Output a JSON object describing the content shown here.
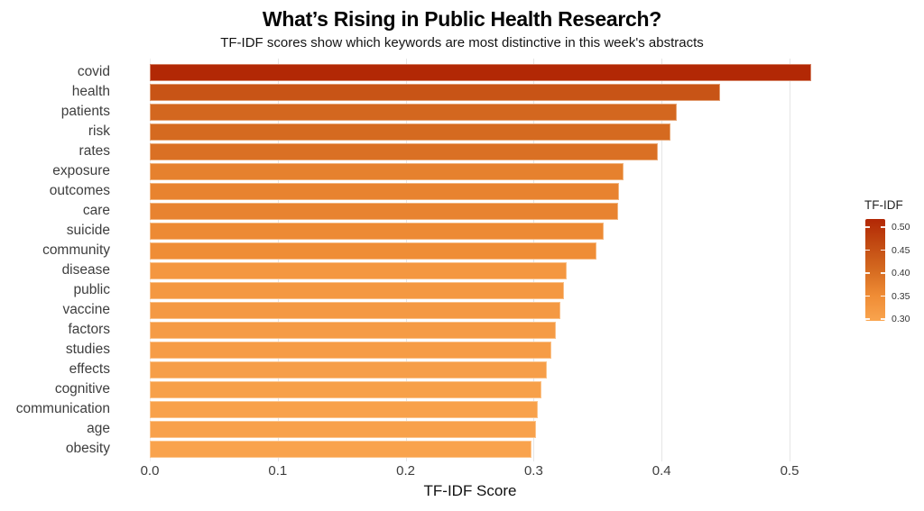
{
  "title": "What’s Rising in Public Health Research?",
  "subtitle": "TF-IDF scores show which keywords are most distinctive in this week's abstracts",
  "chart_data": {
    "type": "bar",
    "orientation": "horizontal",
    "title": "What’s Rising in Public Health Research?",
    "subtitle": "TF-IDF scores show which keywords are most distinctive in this week's abstracts",
    "xlabel": "TF-IDF Score",
    "ylabel": "",
    "categories": [
      "covid",
      "health",
      "patients",
      "risk",
      "rates",
      "exposure",
      "outcomes",
      "care",
      "suicide",
      "community",
      "disease",
      "public",
      "vaccine",
      "factors",
      "studies",
      "effects",
      "cognitive",
      "communication",
      "age",
      "obesity"
    ],
    "values": [
      0.517,
      0.446,
      0.412,
      0.407,
      0.397,
      0.37,
      0.367,
      0.366,
      0.355,
      0.349,
      0.326,
      0.324,
      0.321,
      0.317,
      0.314,
      0.31,
      0.306,
      0.303,
      0.302,
      0.298
    ],
    "xlim": [
      0.0,
      0.526
    ],
    "x_ticks": [
      0.0,
      0.1,
      0.2,
      0.3,
      0.4,
      0.5
    ],
    "x_tick_labels": [
      "0.0",
      "0.1",
      "0.2",
      "0.3",
      "0.4",
      "0.5"
    ],
    "grid": "vertical-major",
    "sort": "descending",
    "legend": {
      "title": "TF-IDF",
      "position": "right",
      "tick_labels": [
        "0.50",
        "0.45",
        "0.40",
        "0.35",
        "0.30"
      ],
      "tick_values": [
        0.5,
        0.45,
        0.4,
        0.35,
        0.3
      ]
    },
    "color_scale": {
      "domain": [
        0.296,
        0.518
      ],
      "stops": [
        {
          "t": 0.0,
          "color": "#F9A44E"
        },
        {
          "t": 0.25,
          "color": "#EF8C35"
        },
        {
          "t": 0.5,
          "color": "#D56A20"
        },
        {
          "t": 0.75,
          "color": "#C24A12"
        },
        {
          "t": 1.0,
          "color": "#B22705"
        }
      ]
    }
  },
  "colors": {
    "background": "#FFFFFF",
    "gridline": "#E6E6E6",
    "axis_text": "#3E3E3E",
    "title_text": "#050505",
    "legend_text": "#333333"
  }
}
